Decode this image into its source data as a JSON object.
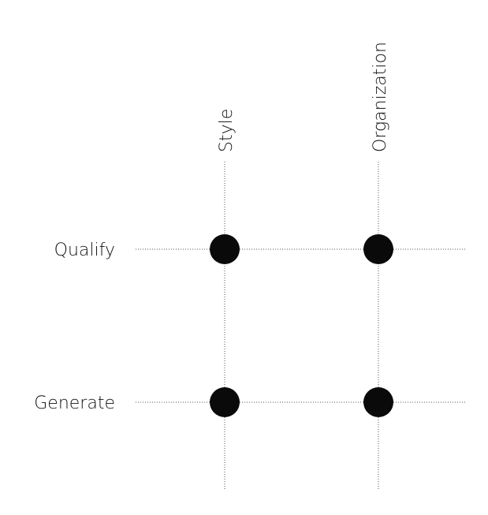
{
  "diagram": {
    "columns": [
      {
        "id": "style",
        "label": "Style"
      },
      {
        "id": "organization",
        "label": "Organization"
      }
    ],
    "rows": [
      {
        "id": "qualify",
        "label": "Qualify"
      },
      {
        "id": "generate",
        "label": "Generate"
      }
    ],
    "nodes": [
      {
        "row": "qualify",
        "column": "style"
      },
      {
        "row": "qualify",
        "column": "organization"
      },
      {
        "row": "generate",
        "column": "style"
      },
      {
        "row": "generate",
        "column": "organization"
      }
    ],
    "colors": {
      "node": "#0a0a0a",
      "line": "#555555",
      "text": "#111111"
    }
  }
}
